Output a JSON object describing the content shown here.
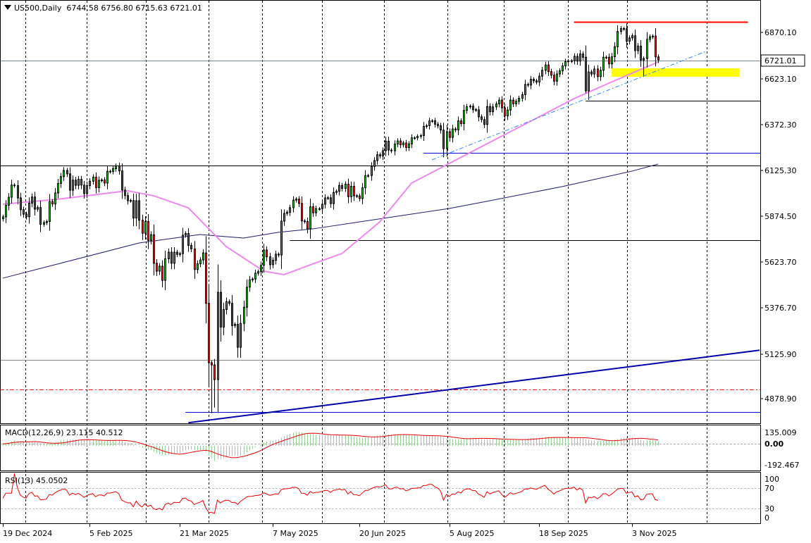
{
  "header": {
    "symbol": "US500,Daily",
    "open": "6744.58",
    "high": "6756.80",
    "low": "6715.63",
    "close": "6721.01"
  },
  "chart_data": {
    "type": "candlestick",
    "colors": {
      "up": "#22bb22",
      "down": "#dd2222",
      "outline": "#000000",
      "fast_ma": "#ee88ee",
      "slow_ma": "#1a1a6e",
      "macd_hist": "#99cc99",
      "signal": "#ee0000",
      "rsi": "#ee0000"
    },
    "price_axis": {
      "ticks": [
        "6870.10",
        "6623.10",
        "6372.30",
        "6125.30",
        "5874.50",
        "5623.70",
        "5376.70",
        "5125.90",
        "4878.90"
      ],
      "current": "6721.01",
      "ylim": [
        4748,
        7045
      ]
    },
    "time_axis": {
      "ticks": [
        "19 Dec 2024",
        "5 Feb 2025",
        "21 Mar 2025",
        "7 May 2025",
        "20 Jun 2025",
        "5 Aug 2025",
        "18 Sep 2025",
        "3 Nov 2025"
      ]
    },
    "closes": [
      5867,
      5930,
      5974,
      6040,
      6037,
      5970,
      5906,
      5882,
      5868,
      5942,
      5975,
      5909,
      5918,
      5827,
      5836,
      5842,
      5950,
      5937,
      5997,
      6049,
      6086,
      6119,
      6101,
      6012,
      6067,
      6039,
      6071,
      6040,
      5994,
      6037,
      6061,
      6083,
      6026,
      6066,
      6068,
      6051,
      6115,
      6114,
      6129,
      6144,
      6117,
      6013,
      5983,
      5955,
      5956,
      5861,
      5955,
      5849,
      5778,
      5842,
      5739,
      5770,
      5615,
      5572,
      5599,
      5522,
      5639,
      5675,
      5615,
      5675,
      5663,
      5667,
      5768,
      5777,
      5712,
      5693,
      5581,
      5612,
      5633,
      5671,
      5397,
      5074,
      5062,
      4982,
      5457,
      5268,
      5363,
      5406,
      5397,
      5276,
      5283,
      5158,
      5288,
      5376,
      5485,
      5525,
      5529,
      5561,
      5569,
      5604,
      5687,
      5650,
      5607,
      5631,
      5664,
      5660,
      5844,
      5886,
      5892,
      5917,
      5958,
      5964,
      5940,
      5845,
      5842,
      5802,
      5922,
      5889,
      5912,
      5912,
      5936,
      5970,
      5971,
      5939,
      6000,
      6006,
      6038,
      6022,
      6045,
      5977,
      6033,
      5982,
      5981,
      5967,
      6025,
      6092,
      6092,
      6141,
      6173,
      6205,
      6198,
      6227,
      6279,
      6230,
      6226,
      6263,
      6280,
      6259,
      6269,
      6244,
      6264,
      6297,
      6297,
      6305,
      6309,
      6359,
      6363,
      6389,
      6390,
      6371,
      6362,
      6339,
      6238,
      6330,
      6299,
      6345,
      6340,
      6389,
      6374,
      6446,
      6466,
      6469,
      6450,
      6449,
      6411,
      6396,
      6370,
      6467,
      6439,
      6465,
      6481,
      6502,
      6460,
      6416,
      6448,
      6502,
      6482,
      6495,
      6512,
      6532,
      6587,
      6584,
      6615,
      6607,
      6600,
      6632,
      6664,
      6693,
      6657,
      6638,
      6605,
      6644,
      6661,
      6688,
      6711,
      6715,
      6716,
      6740,
      6714,
      6753,
      6735,
      6552,
      6655,
      6644,
      6671,
      6630,
      6664,
      6735,
      6735,
      6699,
      6738,
      6792,
      6875,
      6891,
      6890,
      6822,
      6840,
      6852,
      6771,
      6796,
      6720,
      6728,
      6832,
      6846,
      6850,
      6737,
      6721
    ],
    "notable_lows": {
      "2025-04-07": 4800,
      "2025-04-08": 4830,
      "2025-10-10": 6540,
      "2025-11-07": 6630
    },
    "fast_ma": [
      [
        "2024-12-19",
        5936
      ],
      [
        "2025-01-21",
        5963
      ],
      [
        "2025-02-25",
        6009
      ],
      [
        "2025-03-10",
        5982
      ],
      [
        "2025-03-26",
        5916
      ],
      [
        "2025-04-14",
        5706
      ],
      [
        "2025-05-02",
        5572
      ],
      [
        "2025-05-13",
        5553
      ],
      [
        "2025-05-28",
        5612
      ],
      [
        "2025-06-11",
        5668
      ],
      [
        "2025-07-01",
        5840
      ],
      [
        "2025-07-17",
        6051
      ],
      [
        "2025-08-05",
        6158
      ],
      [
        "2025-08-26",
        6281
      ],
      [
        "2025-09-17",
        6403
      ],
      [
        "2025-10-06",
        6510
      ],
      [
        "2025-10-22",
        6594
      ],
      [
        "2025-11-14",
        6709
      ]
    ],
    "slow_ma": [
      [
        "2024-12-19",
        5534
      ],
      [
        "2025-03-03",
        5725
      ],
      [
        "2025-04-01",
        5771
      ],
      [
        "2025-04-23",
        5752
      ],
      [
        "2025-05-09",
        5783
      ],
      [
        "2025-05-28",
        5802
      ],
      [
        "2025-08-05",
        5913
      ],
      [
        "2025-08-25",
        5955
      ],
      [
        "2025-09-30",
        6032
      ],
      [
        "2025-11-03",
        6116
      ],
      [
        "2025-11-14",
        6154
      ]
    ],
    "objects": [
      {
        "kind": "hline",
        "price": 6927,
        "from": "2025-10-06",
        "to": "2025-12-29",
        "color": "#ff0000",
        "style": "solid"
      },
      {
        "kind": "hline",
        "price": 6498,
        "from": "2025-10-10",
        "to": "right",
        "color": "#000000",
        "style": "solid"
      },
      {
        "kind": "hline",
        "price": 6215,
        "from": "2025-07-23",
        "to": "right",
        "color": "#0000cc",
        "style": "solid"
      },
      {
        "kind": "hline",
        "price": 6146,
        "from": "left",
        "to": "right",
        "color": "#000000",
        "style": "solid"
      },
      {
        "kind": "hline",
        "price": 5740,
        "from": "2025-05-15",
        "to": "right",
        "color": "#000000",
        "style": "solid"
      },
      {
        "kind": "hline",
        "price": 5090,
        "from": "left",
        "to": "right",
        "color": "#888888",
        "style": "solid"
      },
      {
        "kind": "hline",
        "price": 4929,
        "from": "left",
        "to": "right",
        "color": "#ff0000",
        "style": "dashdot"
      },
      {
        "kind": "hline",
        "price": 4806,
        "from": "2025-03-25",
        "to": "right",
        "color": "#0000cc",
        "style": "solid"
      },
      {
        "kind": "trend",
        "p1": [
          "2025-03-26",
          4748
        ],
        "p2": [
          "2026-01-02",
          5142
        ],
        "color": "#0000aa",
        "style": "thick"
      },
      {
        "kind": "trend",
        "p1": [
          "2025-07-28",
          6177
        ],
        "p2": [
          "2025-12-09",
          6770
        ],
        "color": "#2a8cff",
        "style": "dashdot"
      },
      {
        "kind": "rect",
        "top": 6675,
        "bottom": 6629,
        "from": "2025-10-23",
        "to": "2025-12-24",
        "color": "#ffff00"
      }
    ],
    "macd": {
      "label": "MACD(12,26,9) 23.115 40.512",
      "fast": 12,
      "slow": 26,
      "signal": 9,
      "ticks": [
        "135.009",
        "0.00",
        "-192.467"
      ],
      "ylim": [
        -210,
        155
      ]
    },
    "rsi": {
      "label": "RSI(13) 45.0502",
      "period": 13,
      "ticks": [
        "100",
        "70",
        "30",
        "0"
      ],
      "levels": [
        70,
        30
      ],
      "ylim": [
        0,
        100
      ]
    }
  }
}
